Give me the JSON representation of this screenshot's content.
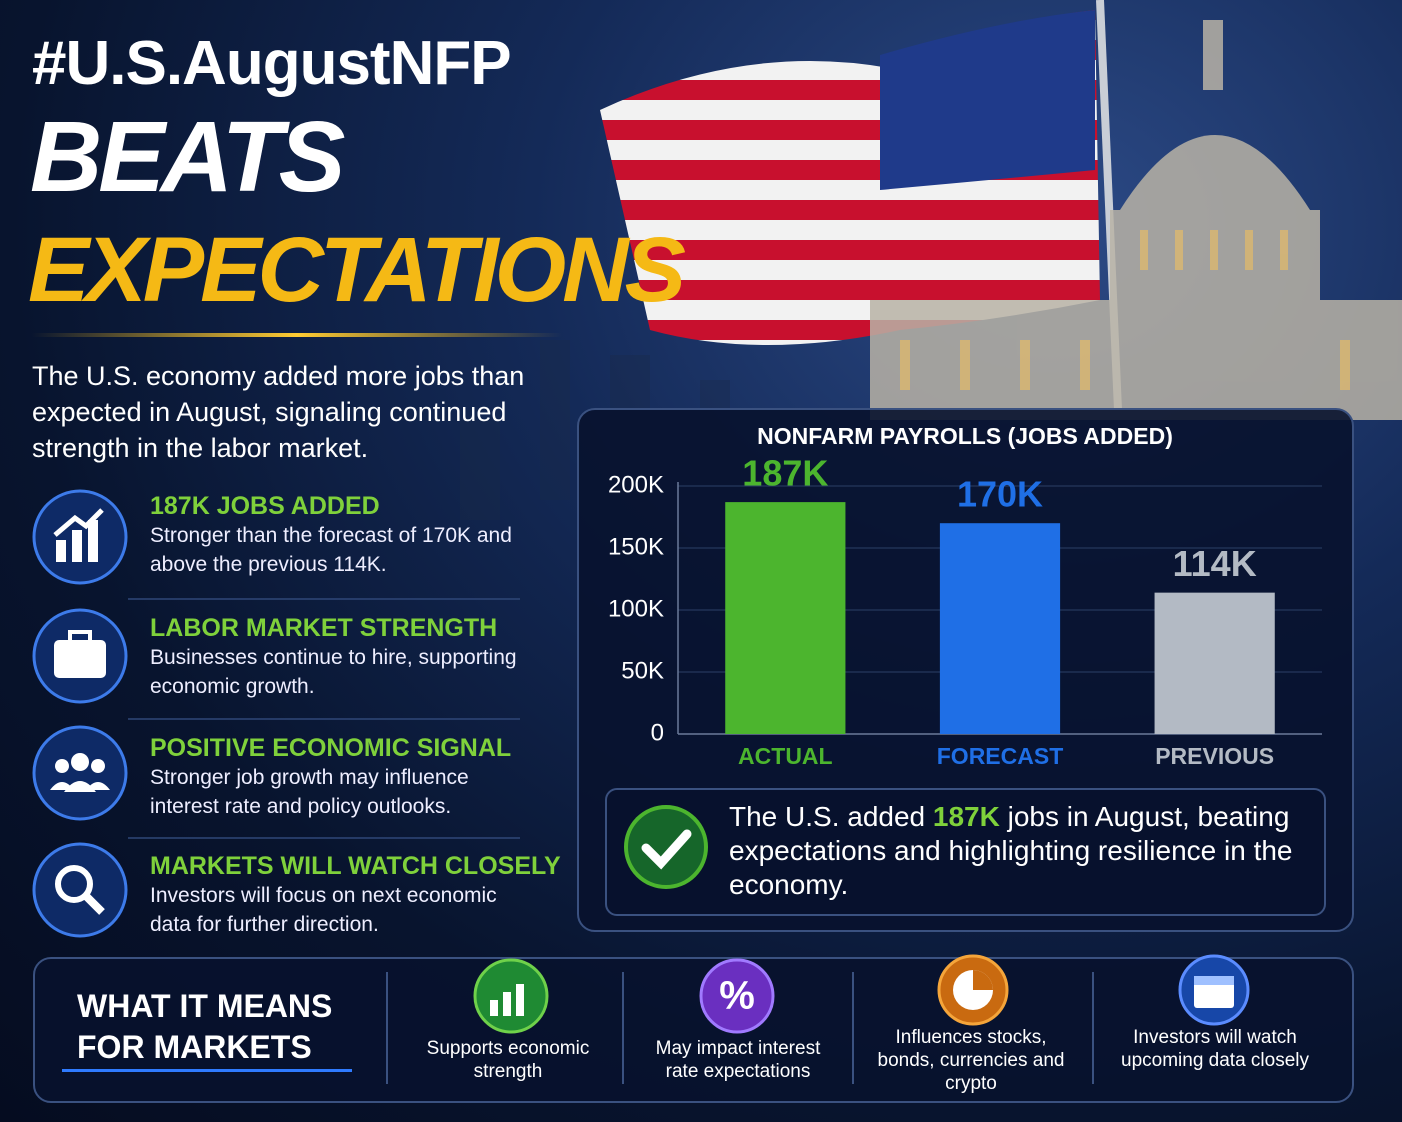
{
  "header": {
    "hashtag": "#U.S.AugustNFP",
    "line1": "BEATS",
    "line2": "EXPECTATIONS"
  },
  "intro": "The U.S. economy added more jobs than expected in August, signaling continued strength in the labor market.",
  "highlights": [
    {
      "title": "187K JOBS ADDED",
      "text": "Stronger than the forecast of 170K and above the previous 114K."
    },
    {
      "title": "LABOR MARKET STRENGTH",
      "text": "Businesses continue to hire, supporting economic growth."
    },
    {
      "title": "POSITIVE ECONOMIC SIGNAL",
      "text": "Stronger job growth may influence interest rate and policy outlooks."
    },
    {
      "title": "MARKETS WILL WATCH CLOSELY",
      "text": "Investors will focus on next economic data for further direction."
    }
  ],
  "chart_data": {
    "type": "bar",
    "title": "NONFARM PAYROLLS (JOBS ADDED)",
    "categories": [
      "ACTUAL",
      "FORECAST",
      "PREVIOUS"
    ],
    "values": [
      187000,
      170000,
      114000
    ],
    "value_labels": [
      "187K",
      "170K",
      "114K"
    ],
    "colors": [
      "#4cb52e",
      "#1f6fe6",
      "#b3bac4"
    ],
    "ylim": [
      0,
      200000
    ],
    "yticks": [
      0,
      {
        "value": 50000,
        "label": "50K"
      },
      {
        "value": 100000,
        "label": "100K"
      },
      {
        "value": 150000,
        "label": "150K"
      },
      {
        "value": 200000,
        "label": "200K"
      }
    ],
    "grid": true
  },
  "summary": {
    "before": "The U.S. added ",
    "highlight": "187K",
    "after": " jobs in August, beating expectations and highlighting resilience in the economy."
  },
  "markets": {
    "title": "WHAT IT MEANS FOR MARKETS",
    "items": [
      "Supports economic strength",
      "May impact interest rate expectations",
      "Influences stocks, bonds, currencies and crypto",
      "Investors will watch upcoming data closely"
    ]
  }
}
